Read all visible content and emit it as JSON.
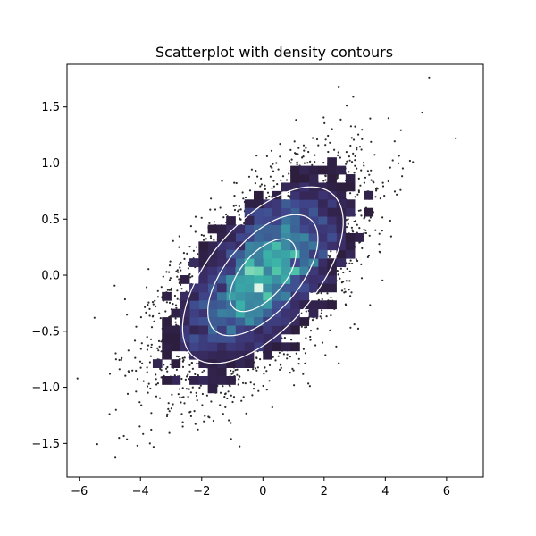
{
  "chart_data": {
    "type": "scatter",
    "title": "Scatterplot with density contours",
    "xlabel": "",
    "ylabel": "",
    "xlim": [
      -6.4,
      7.2
    ],
    "ylim": [
      -1.8,
      1.88
    ],
    "xticks": [
      -6,
      -4,
      -2,
      0,
      2,
      4,
      6
    ],
    "xtick_labels": [
      "−6",
      "−4",
      "−2",
      "0",
      "2",
      "4",
      "6"
    ],
    "yticks": [
      -1.5,
      -1.0,
      -0.5,
      0.0,
      0.5,
      1.0,
      1.5
    ],
    "ytick_labels": [
      "−1.5",
      "−1.0",
      "−0.5",
      "0.0",
      "0.5",
      "1.0",
      "1.5"
    ],
    "grid": false,
    "distribution": {
      "mean": [
        0,
        0
      ],
      "sd_x": 1.5,
      "sd_y": 0.45,
      "correlation": 0.6
    },
    "highlighted_points": [
      {
        "x": 6.3,
        "y": 1.22
      },
      {
        "x": 5.2,
        "y": 1.45
      },
      {
        "x": 2.95,
        "y": 1.59
      },
      {
        "x": -5.5,
        "y": -0.38
      },
      {
        "x": -4.7,
        "y": -1.45
      },
      {
        "x": -4.1,
        "y": -1.52
      },
      {
        "x": -5.0,
        "y": -0.88
      },
      {
        "x": -4.8,
        "y": -1.2
      }
    ],
    "histogram": {
      "cell_w": 0.3,
      "cell_h": 0.075,
      "min_count": 5,
      "colormap": [
        "#2d1e3e",
        "#3b2f6b",
        "#40498e",
        "#3a6d9a",
        "#3b8ea3",
        "#3ab3a8",
        "#5fcfaa",
        "#def5e5"
      ]
    },
    "contours": [
      {
        "level": "outer",
        "color": "#ffffff"
      },
      {
        "level": "middle",
        "color": "#ffffff"
      },
      {
        "level": "inner",
        "color": "#ffffff"
      }
    ]
  }
}
